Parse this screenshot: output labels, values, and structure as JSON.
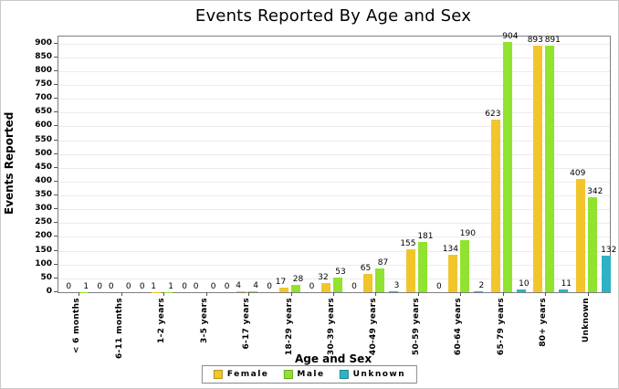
{
  "chart_data": {
    "type": "bar",
    "title": "Events Reported By Age and Sex",
    "xlabel": "Age and Sex",
    "ylabel": "Events Reported",
    "ylim": [
      0,
      925
    ],
    "ytick_step": 50,
    "grid": true,
    "legend_position": "bottom",
    "categories": [
      "< 6 months",
      "6-11 months",
      "1-2 years",
      "3-5 years",
      "6-17 years",
      "18-29 years",
      "30-39 years",
      "40-49 years",
      "50-59 years",
      "60-64 years",
      "65-79 years",
      "80+ years",
      "Unknown"
    ],
    "series": [
      {
        "name": "Female",
        "color": "#f2c52d",
        "values": [
          0,
          0,
          1,
          0,
          4,
          17,
          32,
          65,
          155,
          134,
          623,
          893,
          409
        ]
      },
      {
        "name": "Male",
        "color": "#90e32e",
        "values": [
          1,
          0,
          1,
          0,
          4,
          28,
          53,
          87,
          181,
          190,
          904,
          891,
          342
        ]
      },
      {
        "name": "Unknown",
        "color": "#2eb2c4",
        "values": [
          0,
          0,
          0,
          0,
          0,
          0,
          0,
          3,
          0,
          2,
          10,
          11,
          132
        ]
      }
    ]
  },
  "colors": {
    "plot_border": "#7f7f7f",
    "gridline": "#efeaea",
    "background": "#ffffff",
    "text": "#000000"
  }
}
